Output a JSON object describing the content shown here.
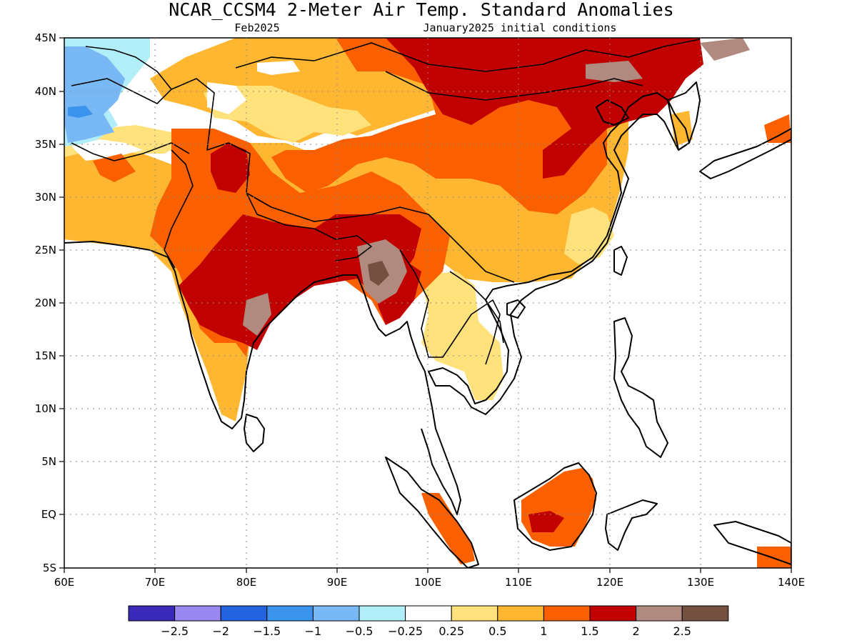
{
  "title": "NCAR_CCSM4 2-Meter Air Temp. Standard Anomalies",
  "subtitle_left": "Feb2025",
  "subtitle_right": "January2025 initial conditions",
  "map": {
    "lon_range": [
      60,
      140
    ],
    "lat_range": [
      -5,
      45
    ],
    "grid": "dotted",
    "lon_labels": [
      "60E",
      "70E",
      "80E",
      "90E",
      "100E",
      "110E",
      "120E",
      "130E",
      "140E"
    ],
    "lat_labels": [
      "5S",
      "EQ",
      "5N",
      "10N",
      "15N",
      "20N",
      "25N",
      "30N",
      "35N",
      "40N",
      "45N"
    ]
  },
  "colorbar": {
    "colors": [
      "#3a28b8",
      "#9988f2",
      "#2463e0",
      "#3a93ec",
      "#78b8f4",
      "#b2eef8",
      "#ffffff",
      "#ffe27c",
      "#ffb732",
      "#fa6000",
      "#c10000",
      "#b08a7e",
      "#745040"
    ],
    "labels": [
      "-2.5",
      "-2",
      "-1.5",
      "-1",
      "-0.5",
      "-0.25",
      "0.25",
      "0.5",
      "1",
      "1.5",
      "2",
      "2.5"
    ]
  },
  "anomaly_regions": [
    {
      "name": "Central Asia",
      "level": "-1 to -0.5",
      "color": "#78b8f4"
    },
    {
      "name": "Indo-Gangetic Plain",
      "level": "1.5 to 2",
      "color": "#c10000"
    },
    {
      "name": "Northern China / Mongolia",
      "level": "1.5 to 2",
      "color": "#c10000"
    },
    {
      "name": "Myanmar",
      "level": "2 to 2.5",
      "color": "#b08a7e"
    },
    {
      "name": "Tibetan Plateau",
      "level": "0.5 to 1.5",
      "color": "#ffb732"
    },
    {
      "name": "Indochina",
      "level": "0.25 to 1",
      "color": "#ffe27c"
    },
    {
      "name": "Borneo",
      "level": "1 to 2",
      "color": "#fa6000"
    }
  ]
}
